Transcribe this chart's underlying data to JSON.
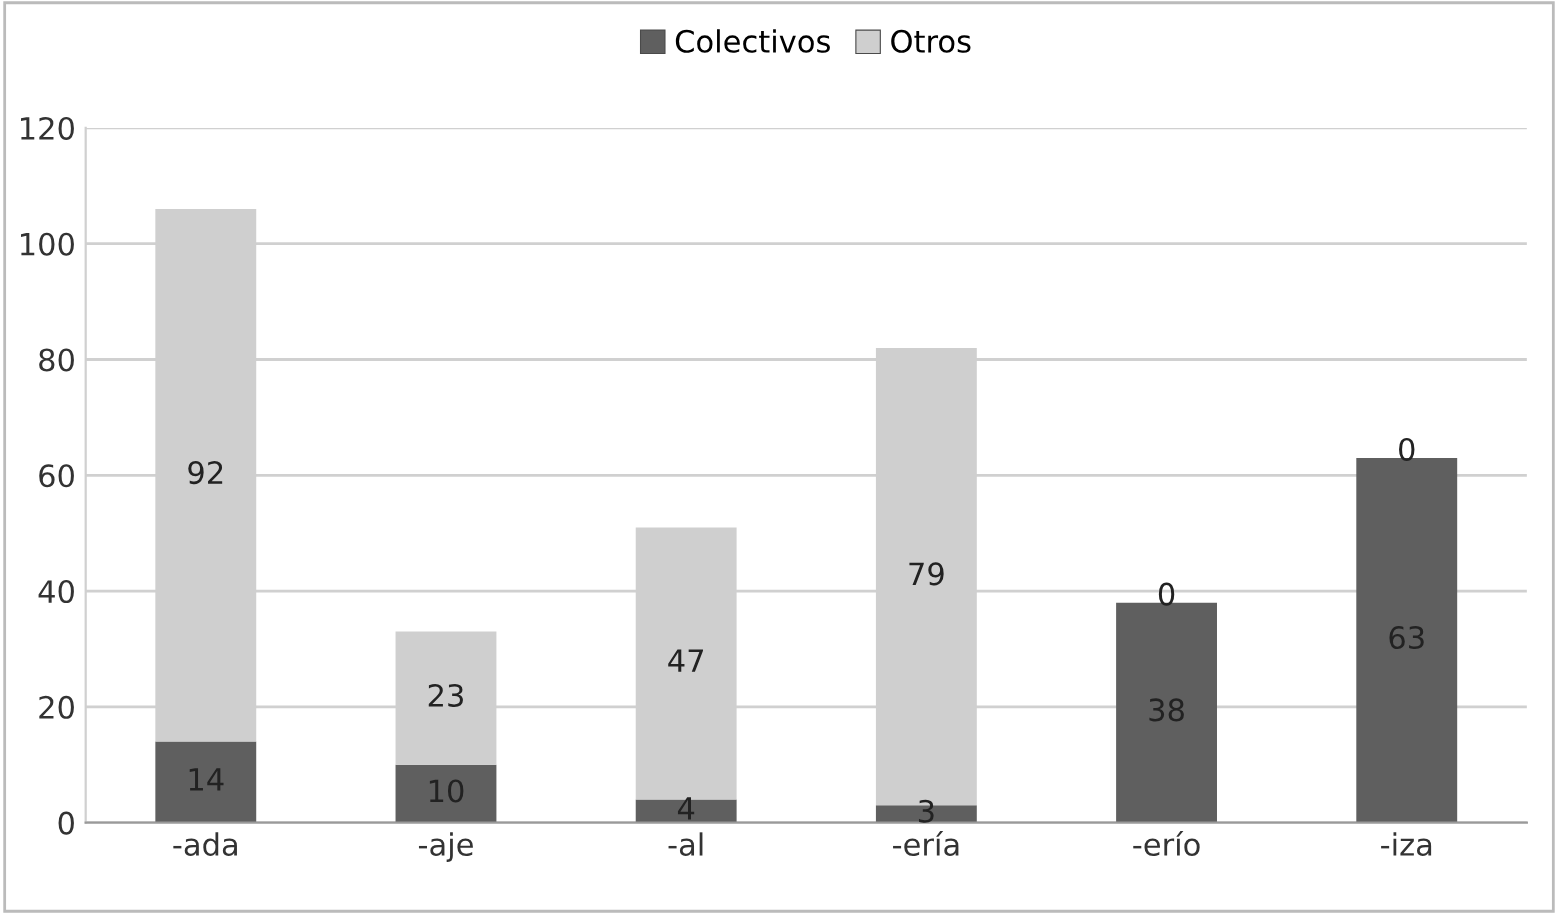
{
  "chart_data": {
    "type": "bar",
    "stacked": true,
    "categories": [
      "-ada",
      "-aje",
      "-al",
      "-ería",
      "-erío",
      "-iza"
    ],
    "series": [
      {
        "name": "Colectivos",
        "color": "#5f5f5f",
        "values": [
          14,
          10,
          4,
          3,
          38,
          63
        ]
      },
      {
        "name": "Otros",
        "color": "#cfcfcf",
        "values": [
          92,
          23,
          47,
          79,
          0,
          0
        ]
      }
    ],
    "ylim": [
      0,
      120
    ],
    "yticks": [
      0,
      20,
      40,
      60,
      80,
      100,
      120
    ],
    "grid": "y",
    "legend": "top",
    "data_labels": true
  }
}
